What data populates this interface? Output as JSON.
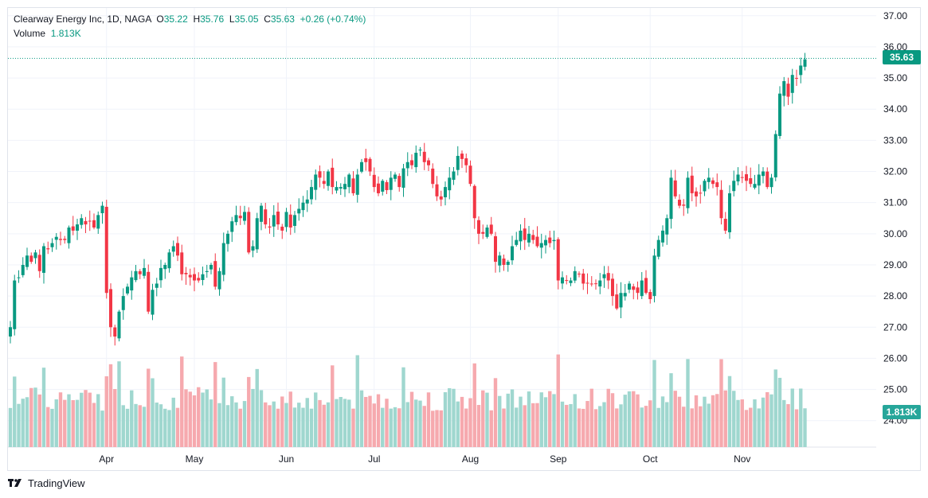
{
  "header": {
    "symbol_line": "Clearway Energy Inc, 1D, NAGA",
    "o_label": "O",
    "o_value": "35.22",
    "h_label": "H",
    "h_value": "35.76",
    "l_label": "L",
    "l_value": "35.05",
    "c_label": "C",
    "c_value": "35.63",
    "change": "+0.26 (+0.74%)",
    "volume_label": "Volume",
    "volume_value": "1.813K"
  },
  "price_tag": "35.63",
  "volume_tag": "1.813K",
  "footer": {
    "brand": "TradingView"
  },
  "colors": {
    "up": "#089981",
    "down": "#f23645",
    "up_vol": "#9fd7cf",
    "down_vol": "#f6a9ae",
    "grid": "#f0f3fa",
    "axis_text": "#131722"
  },
  "chart_data": {
    "type": "candlestick",
    "title": "Clearway Energy Inc, 1D, NAGA",
    "y_ticks": [
      "37.00",
      "36.00",
      "35.00",
      "34.00",
      "33.00",
      "32.00",
      "31.00",
      "30.00",
      "29.00",
      "28.00",
      "27.00",
      "26.00",
      "25.00",
      "24.00"
    ],
    "y_range": [
      23.15,
      37.25
    ],
    "x_labels": [
      "Apr",
      "May",
      "Jun",
      "Jul",
      "Aug",
      "Sep",
      "Oct",
      "Nov"
    ],
    "x_label_index": [
      23,
      44,
      66,
      87,
      110,
      131,
      153,
      175
    ],
    "last_close": 35.63,
    "closes": [
      27.0,
      28.5,
      28.6,
      29.0,
      29.3,
      29.1,
      29.4,
      28.8,
      29.6,
      29.5,
      29.7,
      29.9,
      29.8,
      29.8,
      30.2,
      30.1,
      30.3,
      30.5,
      30.3,
      30.4,
      30.2,
      30.6,
      30.9,
      28.1,
      27.0,
      26.7,
      27.5,
      28.0,
      28.3,
      28.6,
      28.8,
      28.7,
      28.9,
      27.5,
      28.2,
      28.4,
      28.9,
      29.0,
      29.4,
      29.6,
      29.3,
      28.7,
      28.7,
      28.6,
      28.5,
      28.5,
      28.7,
      28.8,
      29.0,
      28.3,
      28.8,
      29.7,
      30.0,
      30.4,
      30.6,
      30.5,
      30.7,
      29.4,
      29.6,
      30.5,
      30.9,
      30.3,
      30.2,
      30.6,
      30.3,
      30.1,
      30.7,
      30.2,
      30.6,
      30.8,
      31.0,
      31.1,
      31.5,
      31.9,
      31.8,
      31.6,
      32.0,
      31.5,
      31.5,
      31.5,
      31.6,
      31.9,
      31.3,
      31.9,
      32.3,
      32.3,
      32.0,
      31.5,
      31.3,
      31.7,
      31.4,
      31.8,
      31.9,
      31.5,
      32.1,
      32.3,
      32.2,
      32.6,
      32.7,
      32.3,
      32.2,
      31.6,
      31.2,
      31.1,
      31.5,
      31.8,
      32.0,
      32.5,
      32.4,
      32.2,
      31.6,
      30.5,
      30.0,
      30.0,
      30.2,
      30.0,
      29.1,
      29.3,
      29.0,
      29.1,
      29.6,
      29.8,
      30.1,
      29.8,
      30.0,
      29.8,
      29.6,
      29.7,
      29.8,
      29.7,
      29.8,
      28.5,
      28.6,
      28.5,
      28.5,
      28.8,
      28.7,
      28.4,
      28.4,
      28.4,
      28.4,
      28.5,
      28.7,
      28.5,
      28.0,
      27.6,
      28.1,
      28.1,
      28.4,
      28.2,
      28.1,
      28.5,
      28.1,
      27.9,
      29.3,
      29.8,
      30.1,
      30.5,
      31.8,
      31.2,
      30.9,
      30.9,
      31.8,
      31.3,
      31.2,
      31.3,
      31.7,
      31.8,
      31.6,
      31.5,
      30.5,
      30.1,
      31.3,
      31.7,
      31.9,
      31.8,
      31.7,
      31.6,
      31.6,
      31.9,
      32.0,
      31.5,
      31.8,
      33.2,
      34.5,
      34.9,
      34.4,
      35.1,
      35.0,
      35.4,
      35.6
    ],
    "volume_max": 2.7
  }
}
